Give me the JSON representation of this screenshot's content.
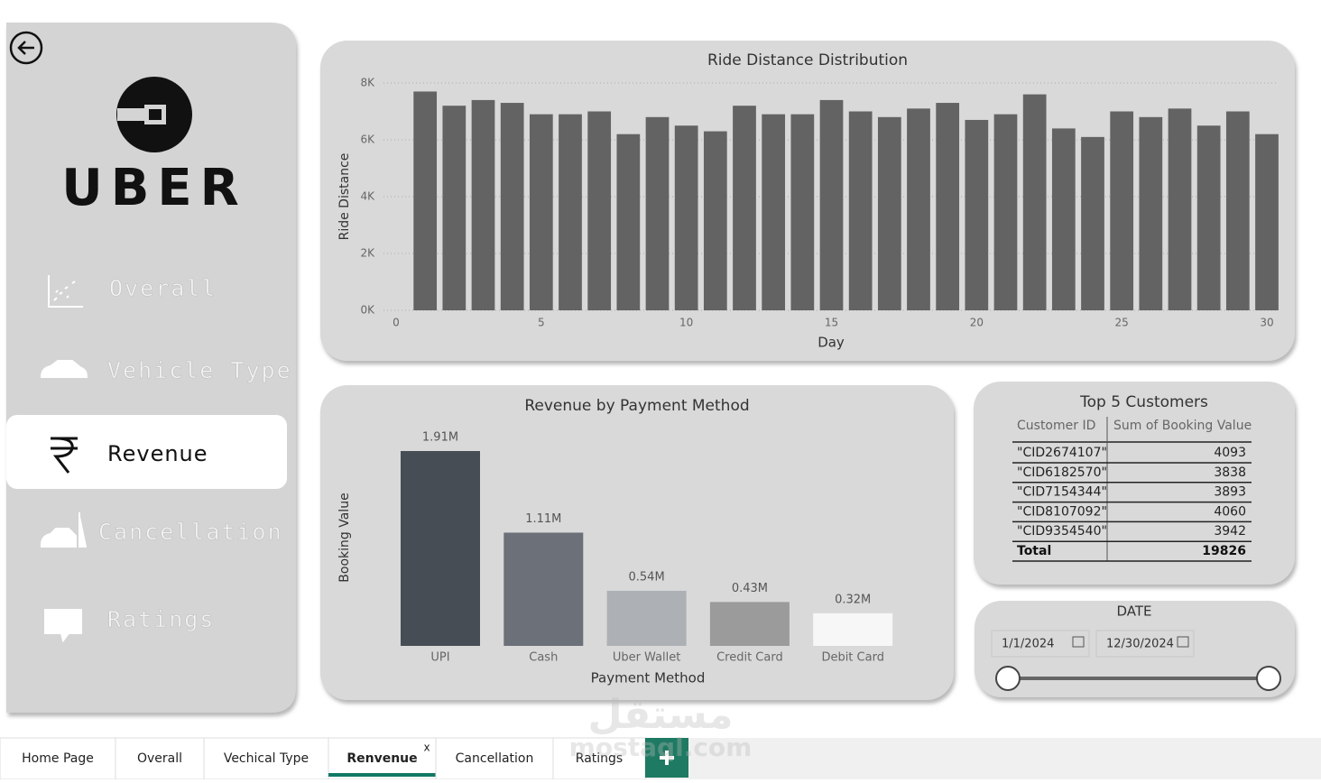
{
  "nav": {
    "items": [
      "Overall",
      "Vehicle Type",
      "Revenue",
      "Cancellation",
      "Ratings"
    ],
    "active": 2
  },
  "logo": "UBER",
  "ride_chart": {
    "type": "bar",
    "title": "Ride Distance Distribution",
    "x_label": "Day",
    "y_label": "Ride Distance",
    "x": [
      1,
      2,
      3,
      4,
      5,
      6,
      7,
      8,
      9,
      10,
      11,
      12,
      13,
      14,
      15,
      16,
      17,
      18,
      19,
      20,
      21,
      22,
      23,
      24,
      25,
      26,
      27,
      28,
      29,
      30
    ],
    "values": [
      7700,
      7200,
      7400,
      7300,
      6900,
      6900,
      7000,
      6200,
      6800,
      6500,
      6300,
      7200,
      6900,
      6900,
      7400,
      7000,
      6800,
      7100,
      7300,
      6700,
      6900,
      7600,
      6400,
      6100,
      7000,
      6800,
      7100,
      6500,
      7000,
      6200
    ],
    "xlim": [
      0,
      30
    ],
    "xticks": [
      0,
      5,
      10,
      15,
      20,
      25,
      30
    ],
    "ylim": [
      0,
      8000
    ],
    "yticks": [
      {
        "value": 0,
        "label": "0K"
      },
      {
        "value": 2000,
        "label": "2K"
      },
      {
        "value": 4000,
        "label": "4K"
      },
      {
        "value": 6000,
        "label": "6K"
      },
      {
        "value": 8000,
        "label": "8K"
      }
    ],
    "color": "#636363",
    "grid": true
  },
  "revenue_chart": {
    "type": "bar",
    "title": "Revenue by Payment Method",
    "x_label": "Payment Method",
    "y_label": "Booking Value",
    "categories": [
      "UPI",
      "Cash",
      "Uber Wallet",
      "Credit Card",
      "Debit Card"
    ],
    "values": [
      1.91,
      1.11,
      0.54,
      0.43,
      0.32
    ],
    "value_labels": [
      "1.91M",
      "1.11M",
      "0.54M",
      "0.43M",
      "0.32M"
    ],
    "colors": [
      "#474d55",
      "#6b7079",
      "#adb1b5",
      "#9b9b9b",
      "#f7f7f7"
    ]
  },
  "top_customers": {
    "title": "Top 5 Customers",
    "columns": [
      "Customer ID",
      "Sum of Booking Value"
    ],
    "rows": [
      [
        "\"CID2674107\"",
        4093
      ],
      [
        "\"CID6182570\"",
        3838
      ],
      [
        "\"CID7154344\"",
        3893
      ],
      [
        "\"CID8107092\"",
        4060
      ],
      [
        "\"CID9354540\"",
        3942
      ]
    ],
    "total": [
      "Total",
      19826
    ]
  },
  "date_filter": {
    "title": "DATE",
    "start": "1/1/2024",
    "end": "12/30/2024"
  },
  "tabs": {
    "items": [
      "Home Page",
      "Overall",
      "Vechical Type",
      "Renvenue",
      "Cancellation",
      "Ratings"
    ],
    "active": 3,
    "close": "x"
  },
  "watermark": [
    "مستقل",
    "mostaql.com"
  ]
}
